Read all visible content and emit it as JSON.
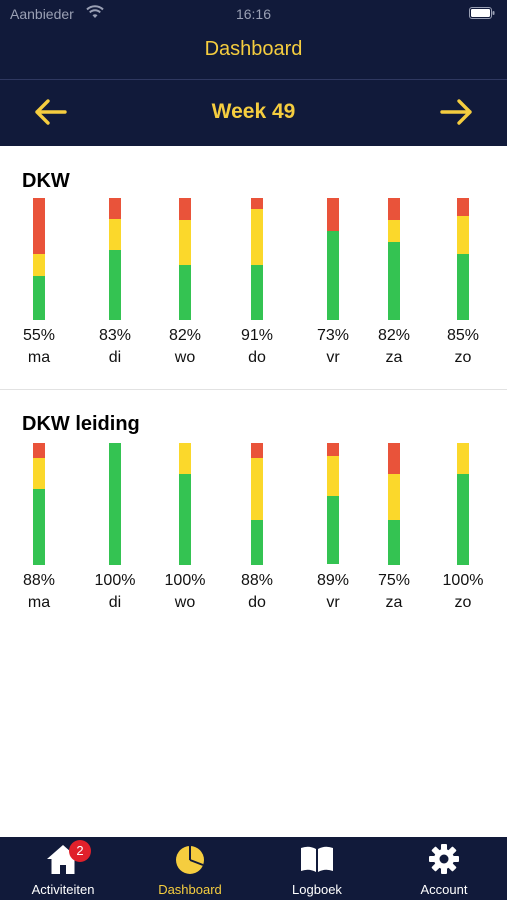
{
  "status_bar": {
    "carrier": "Aanbieder",
    "time": "16:16"
  },
  "nav": {
    "title": "Dashboard",
    "week_label": "Week 49"
  },
  "colors": {
    "navy": "#111a3a",
    "accent": "#f5cd3f",
    "red": "#e9533a",
    "yellow": "#fbd82b",
    "green": "#34c352"
  },
  "sections": [
    {
      "title": "DKW",
      "days": [
        {
          "label": "55%",
          "day": "ma",
          "green": 0.36,
          "yellow": 0.18,
          "red": 0.46
        },
        {
          "label": "83%",
          "day": "di",
          "green": 0.58,
          "yellow": 0.25,
          "red": 0.17
        },
        {
          "label": "82%",
          "day": "wo",
          "green": 0.45,
          "yellow": 0.37,
          "red": 0.18
        },
        {
          "label": "91%",
          "day": "do",
          "green": 0.45,
          "yellow": 0.46,
          "red": 0.09
        },
        {
          "label": "73%",
          "day": "vr",
          "green": 0.73,
          "yellow": 0.0,
          "red": 0.27
        },
        {
          "label": "82%",
          "day": "za",
          "green": 0.64,
          "yellow": 0.18,
          "red": 0.18
        },
        {
          "label": "85%",
          "day": "zo",
          "green": 0.54,
          "yellow": 0.31,
          "red": 0.15
        }
      ]
    },
    {
      "title": "DKW leiding",
      "days": [
        {
          "label": "88%",
          "day": "ma",
          "green": 0.63,
          "yellow": 0.25,
          "red": 0.12
        },
        {
          "label": "100%",
          "day": "di",
          "green": 1.0,
          "yellow": 0.0,
          "red": 0.0
        },
        {
          "label": "100%",
          "day": "wo",
          "green": 0.75,
          "yellow": 0.25,
          "red": 0.0
        },
        {
          "label": "88%",
          "day": "do",
          "green": 0.37,
          "yellow": 0.51,
          "red": 0.12
        },
        {
          "label": "89%",
          "day": "vr",
          "green": 0.56,
          "yellow": 0.33,
          "red": 0.11
        },
        {
          "label": "75%",
          "day": "za",
          "green": 0.37,
          "yellow": 0.38,
          "red": 0.25
        },
        {
          "label": "100%",
          "day": "zo",
          "green": 0.75,
          "yellow": 0.25,
          "red": 0.0
        }
      ]
    }
  ],
  "tabbar": {
    "items": [
      {
        "label": "Activiteiten",
        "icon": "home-icon",
        "badge": "2",
        "active": false
      },
      {
        "label": "Dashboard",
        "icon": "pie-chart-icon",
        "active": true
      },
      {
        "label": "Logboek",
        "icon": "book-icon",
        "active": false
      },
      {
        "label": "Account",
        "icon": "gear-icon",
        "active": false
      }
    ]
  }
}
